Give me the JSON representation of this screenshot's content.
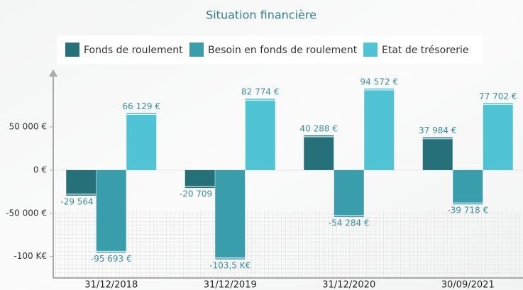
{
  "chart_data": {
    "type": "bar",
    "title": "Situation financière",
    "categories": [
      "31/12/2018",
      "31/12/2019",
      "31/12/2020",
      "30/09/2021"
    ],
    "series": [
      {
        "name": "Fonds de roulement",
        "color": "#26707a",
        "values": [
          -29564,
          -20709,
          40288,
          37984
        ],
        "value_labels": [
          "-29 564 €",
          "-20 709 €",
          "40 288 €",
          "37 984 €"
        ]
      },
      {
        "name": "Besoin en fonds de roulement",
        "color": "#3a9dab",
        "values": [
          -95693,
          -103500,
          -54284,
          -39718
        ],
        "value_labels": [
          "-95 693 €",
          "-103,5 K€",
          "-54 284 €",
          "-39 718 €"
        ]
      },
      {
        "name": "Etat de trésorerie",
        "color": "#50c4d5",
        "values": [
          66129,
          82774,
          94572,
          77702
        ],
        "value_labels": [
          "66 129 €",
          "82 774 €",
          "94 572 €",
          "77 702 €"
        ]
      }
    ],
    "ylim": [
      -125000,
      115000
    ],
    "yticks": [
      {
        "value": 50000,
        "label": "50 000 €"
      },
      {
        "value": 0,
        "label": "0 €"
      },
      {
        "value": -50000,
        "label": "-50 000 €"
      },
      {
        "value": -100000,
        "label": "-100 K€"
      }
    ],
    "legend": "top"
  }
}
